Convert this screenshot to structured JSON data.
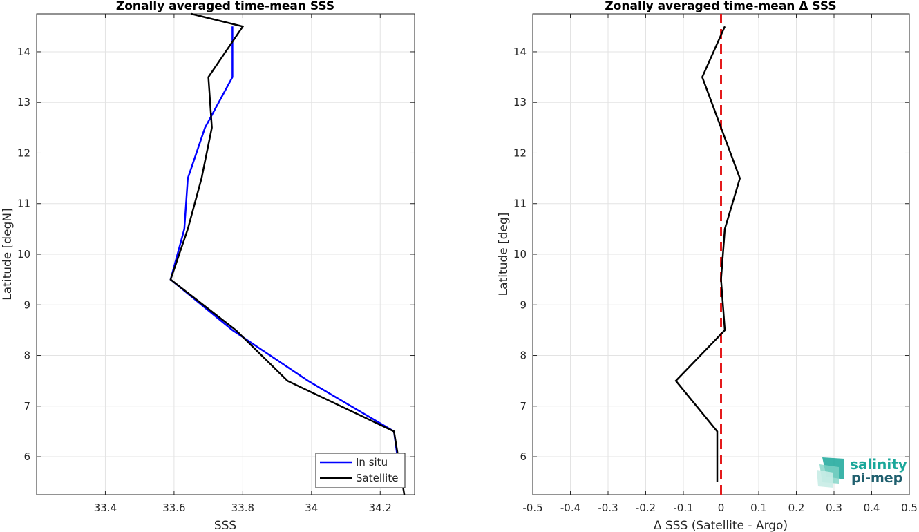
{
  "chart_data": [
    {
      "type": "line",
      "title": "Zonally averaged time-mean SSS",
      "xlabel": "SSS",
      "ylabel": "Latitude [degN]",
      "xlim": [
        33.2,
        34.3
      ],
      "ylim": [
        5.25,
        14.75
      ],
      "xticks": [
        33.4,
        33.6,
        33.8,
        34,
        34.2
      ],
      "xticklabels": [
        "33.4",
        "33.6",
        "33.8",
        "34",
        "34.2"
      ],
      "yticks": [
        6,
        7,
        8,
        9,
        10,
        11,
        12,
        13,
        14
      ],
      "yticklabels": [
        "6",
        "7",
        "8",
        "9",
        "10",
        "11",
        "12",
        "13",
        "14"
      ],
      "grid": true,
      "legend_position": "bottom-right",
      "series": [
        {
          "name": "In situ",
          "color": "#0000ff",
          "points": [
            {
              "x": 34.26,
              "y": 5.5
            },
            {
              "x": 34.24,
              "y": 6.5
            },
            {
              "x": 33.99,
              "y": 7.5
            },
            {
              "x": 33.77,
              "y": 8.5
            },
            {
              "x": 33.59,
              "y": 9.5
            },
            {
              "x": 33.63,
              "y": 10.5
            },
            {
              "x": 33.64,
              "y": 11.5
            },
            {
              "x": 33.69,
              "y": 12.5
            },
            {
              "x": 33.77,
              "y": 13.5
            },
            {
              "x": 33.77,
              "y": 14.5
            }
          ]
        },
        {
          "name": "Satellite",
          "color": "#000000",
          "points": [
            {
              "x": 34.27,
              "y": 5.25
            },
            {
              "x": 34.24,
              "y": 6.5
            },
            {
              "x": 33.93,
              "y": 7.5
            },
            {
              "x": 33.78,
              "y": 8.5
            },
            {
              "x": 33.59,
              "y": 9.5
            },
            {
              "x": 33.64,
              "y": 10.5
            },
            {
              "x": 33.68,
              "y": 11.5
            },
            {
              "x": 33.71,
              "y": 12.5
            },
            {
              "x": 33.7,
              "y": 13.5
            },
            {
              "x": 33.8,
              "y": 14.5
            },
            {
              "x": 33.65,
              "y": 14.75
            }
          ]
        }
      ]
    },
    {
      "type": "line",
      "title": "Zonally averaged time-mean Δ SSS",
      "xlabel": "Δ SSS (Satellite - Argo)",
      "ylabel": "Latitude [deg]",
      "xlim": [
        -0.5,
        0.5
      ],
      "ylim": [
        5.25,
        14.75
      ],
      "xticks": [
        -0.5,
        -0.4,
        -0.3,
        -0.2,
        -0.1,
        0,
        0.1,
        0.2,
        0.3,
        0.4,
        0.5
      ],
      "xticklabels": [
        "-0.5",
        "-0.4",
        "-0.3",
        "-0.2",
        "-0.1",
        "0",
        "0.1",
        "0.2",
        "0.3",
        "0.4",
        "0.5"
      ],
      "yticks": [
        6,
        7,
        8,
        9,
        10,
        11,
        12,
        13,
        14
      ],
      "yticklabels": [
        "6",
        "7",
        "8",
        "9",
        "10",
        "11",
        "12",
        "13",
        "14"
      ],
      "grid": true,
      "reference_line": {
        "x": 0,
        "color": "#e41a1c",
        "style": "dashed"
      },
      "series": [
        {
          "color": "#000000",
          "points": [
            {
              "x": -0.01,
              "y": 5.5
            },
            {
              "x": -0.01,
              "y": 6.5
            },
            {
              "x": -0.12,
              "y": 7.5
            },
            {
              "x": 0.01,
              "y": 8.5
            },
            {
              "x": 0.0,
              "y": 9.5
            },
            {
              "x": 0.01,
              "y": 10.5
            },
            {
              "x": 0.05,
              "y": 11.5
            },
            {
              "x": 0.0,
              "y": 12.5
            },
            {
              "x": -0.05,
              "y": 13.5
            },
            {
              "x": 0.01,
              "y": 14.5
            }
          ]
        }
      ]
    }
  ],
  "logo": {
    "line1": "salinity",
    "line2": "pi-mep",
    "color1": "#1aa79a",
    "color2": "#1f5f6e"
  }
}
